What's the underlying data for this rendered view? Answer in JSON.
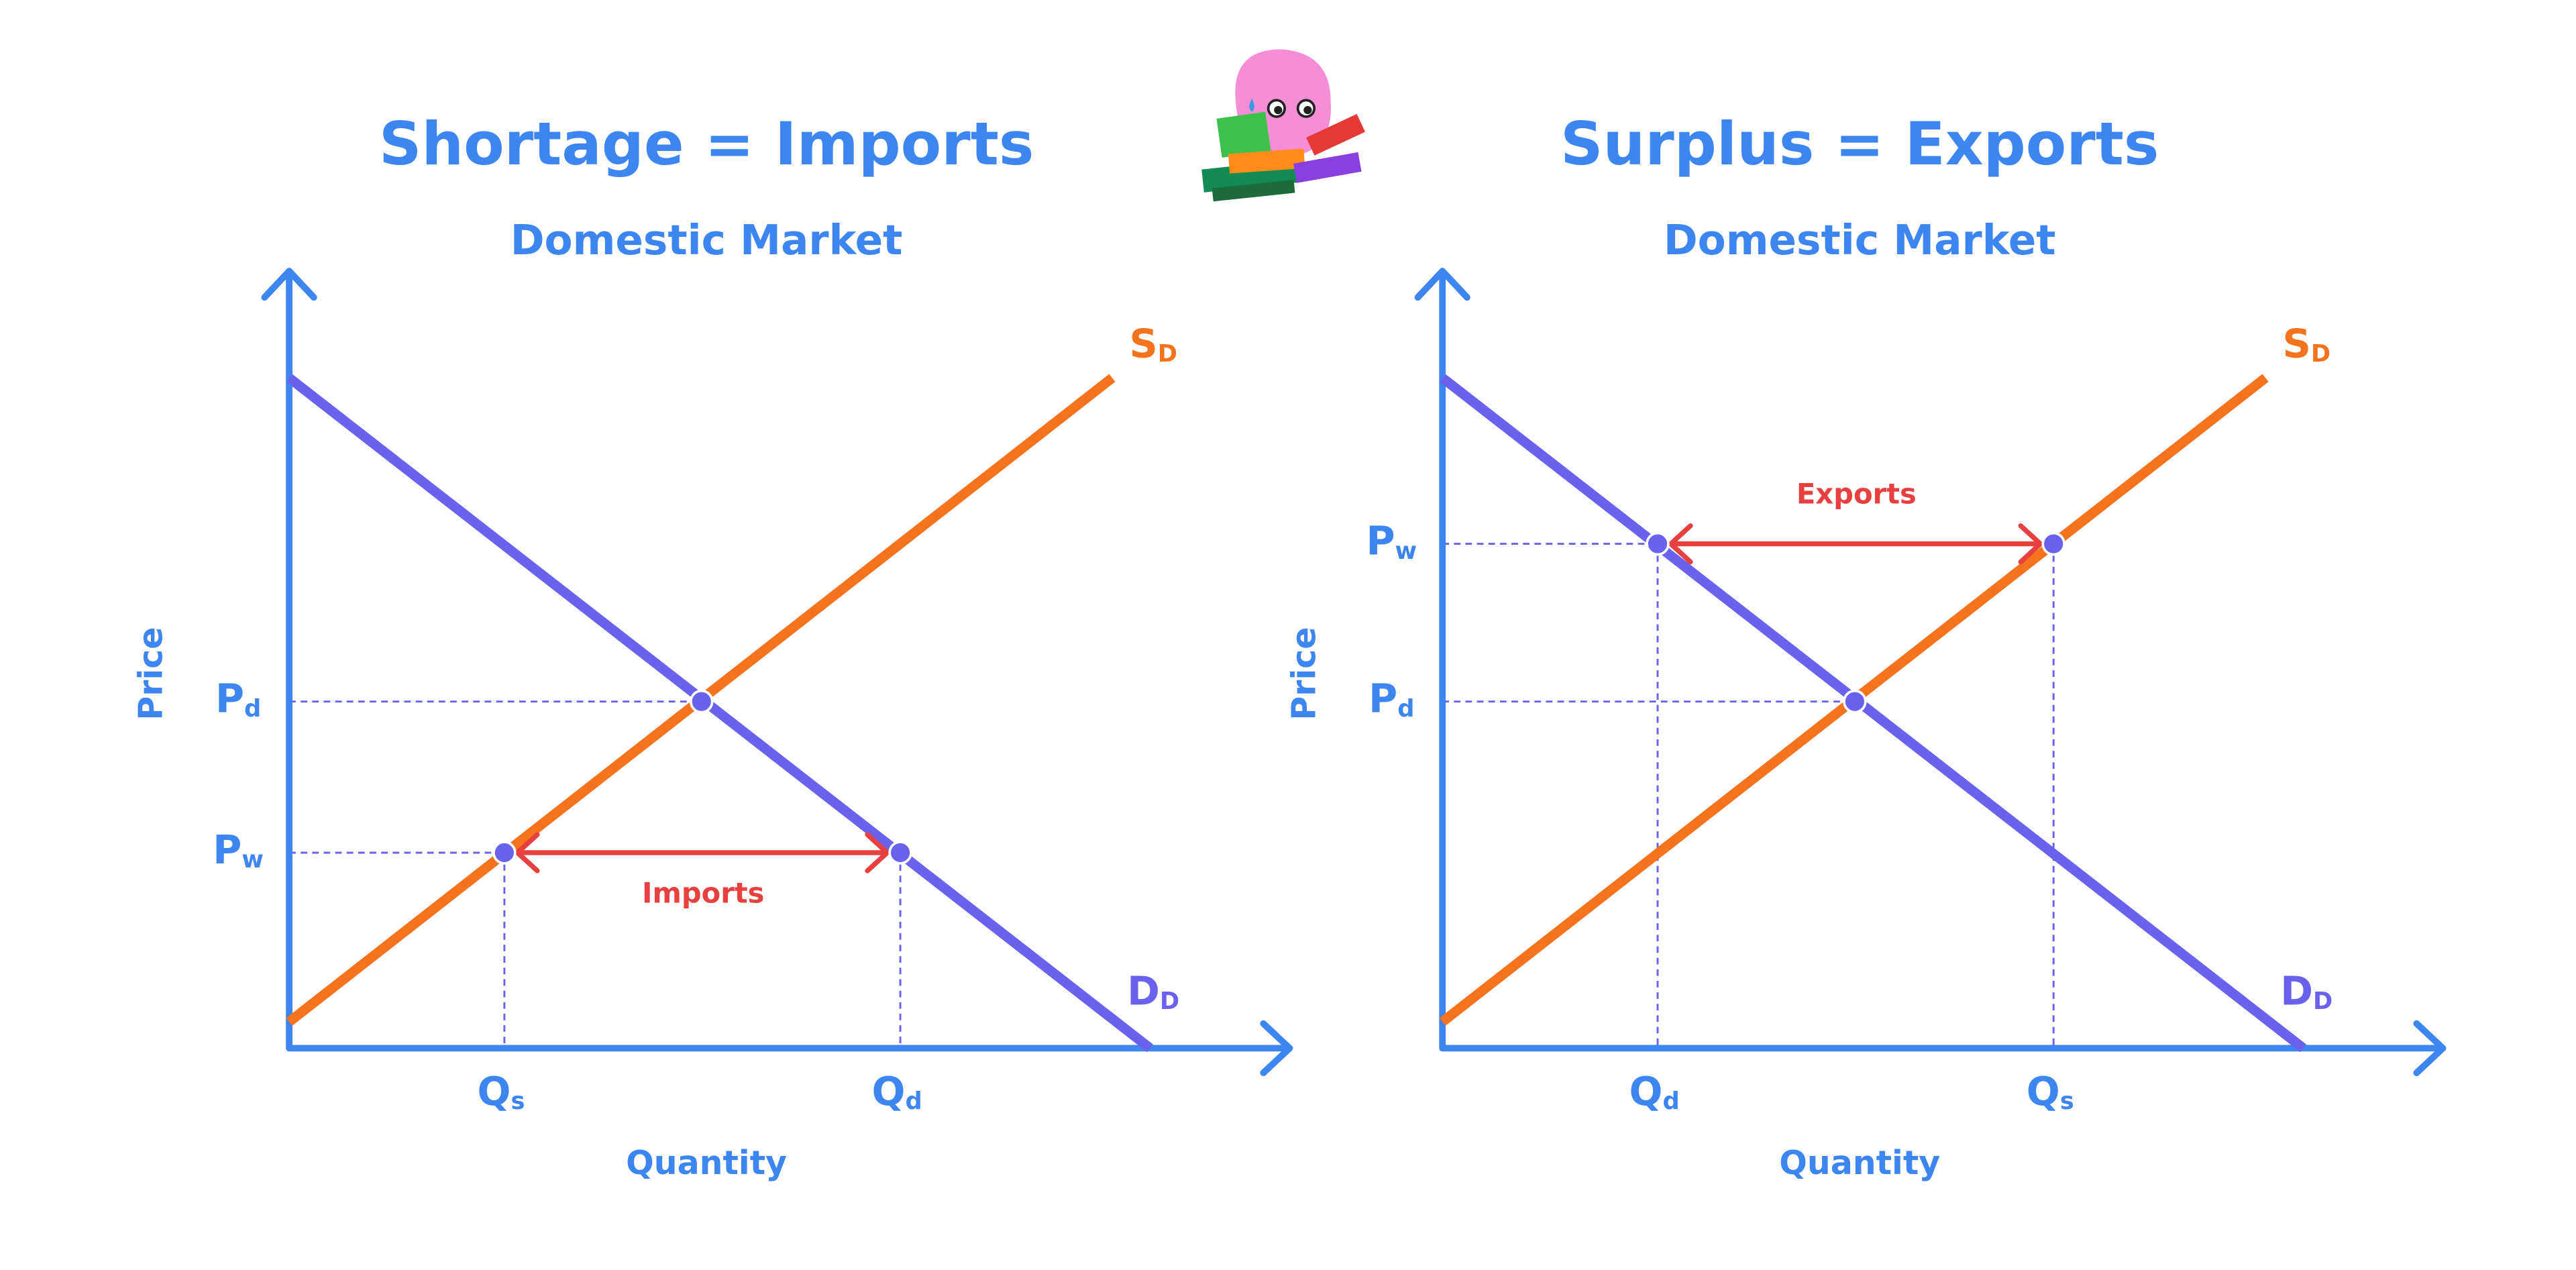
{
  "diagrams": [
    {
      "title": "Shortage = Imports",
      "subtitle": "Domestic Market",
      "y_axis_label": "Price",
      "x_axis_label": "Quantity",
      "price_labels": [
        {
          "main": "P",
          "sub": "d"
        },
        {
          "main": "P",
          "sub": "w"
        }
      ],
      "quantity_labels": [
        {
          "main": "Q",
          "sub": "s"
        },
        {
          "main": "Q",
          "sub": "d"
        }
      ],
      "supply_label": {
        "main": "S",
        "sub": "D"
      },
      "demand_label": {
        "main": "D",
        "sub": "D"
      },
      "trade_label": "Imports"
    },
    {
      "title": "Surplus = Exports",
      "subtitle": "Domestic Market",
      "y_axis_label": "Price",
      "x_axis_label": "Quantity",
      "price_labels": [
        {
          "main": "P",
          "sub": "w"
        },
        {
          "main": "P",
          "sub": "d"
        }
      ],
      "quantity_labels": [
        {
          "main": "Q",
          "sub": "d"
        },
        {
          "main": "Q",
          "sub": "s"
        }
      ],
      "supply_label": {
        "main": "S",
        "sub": "D"
      },
      "demand_label": {
        "main": "D",
        "sub": "D"
      },
      "trade_label": "Exports"
    }
  ]
}
